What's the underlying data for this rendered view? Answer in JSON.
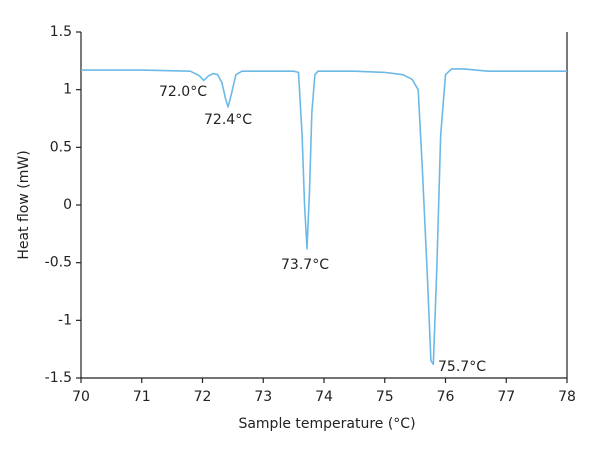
{
  "chart_data": {
    "type": "line",
    "xlabel": "Sample temperature (°C)",
    "ylabel": "Heat flow (mW)",
    "x": [
      70,
      71,
      71.8,
      71.95,
      72.02,
      72.1,
      72.18,
      72.25,
      72.32,
      72.38,
      72.42,
      72.47,
      72.55,
      72.65,
      73.0,
      73.5,
      73.58,
      73.64,
      73.68,
      73.72,
      73.76,
      73.8,
      73.85,
      73.9,
      74.5,
      75.0,
      75.3,
      75.45,
      75.55,
      75.62,
      75.7,
      75.76,
      75.8,
      75.86,
      75.92,
      76.0,
      76.1,
      76.3,
      76.7,
      77.0,
      78
    ],
    "series": [
      {
        "color": "#6db9e5",
        "values": [
          1.17,
          1.17,
          1.16,
          1.12,
          1.08,
          1.12,
          1.14,
          1.13,
          1.06,
          0.92,
          0.85,
          0.95,
          1.13,
          1.16,
          1.16,
          1.16,
          1.15,
          0.6,
          0.0,
          -0.38,
          0.1,
          0.8,
          1.13,
          1.16,
          1.16,
          1.15,
          1.13,
          1.09,
          1.0,
          0.3,
          -0.6,
          -1.35,
          -1.38,
          -0.5,
          0.6,
          1.13,
          1.18,
          1.18,
          1.16,
          1.16,
          1.16
        ]
      }
    ],
    "annotations": [
      "72.0°C",
      "72.4°C",
      "73.7°C",
      "75.7°C"
    ],
    "xlim": [
      70,
      78
    ],
    "xticks": [
      70,
      71,
      72,
      73,
      74,
      75,
      76,
      77,
      78
    ],
    "ylim": [
      -1.5,
      1.5
    ],
    "yticks": [
      -1.5,
      -1,
      -0.5,
      0,
      0.5,
      1,
      1.5
    ]
  }
}
